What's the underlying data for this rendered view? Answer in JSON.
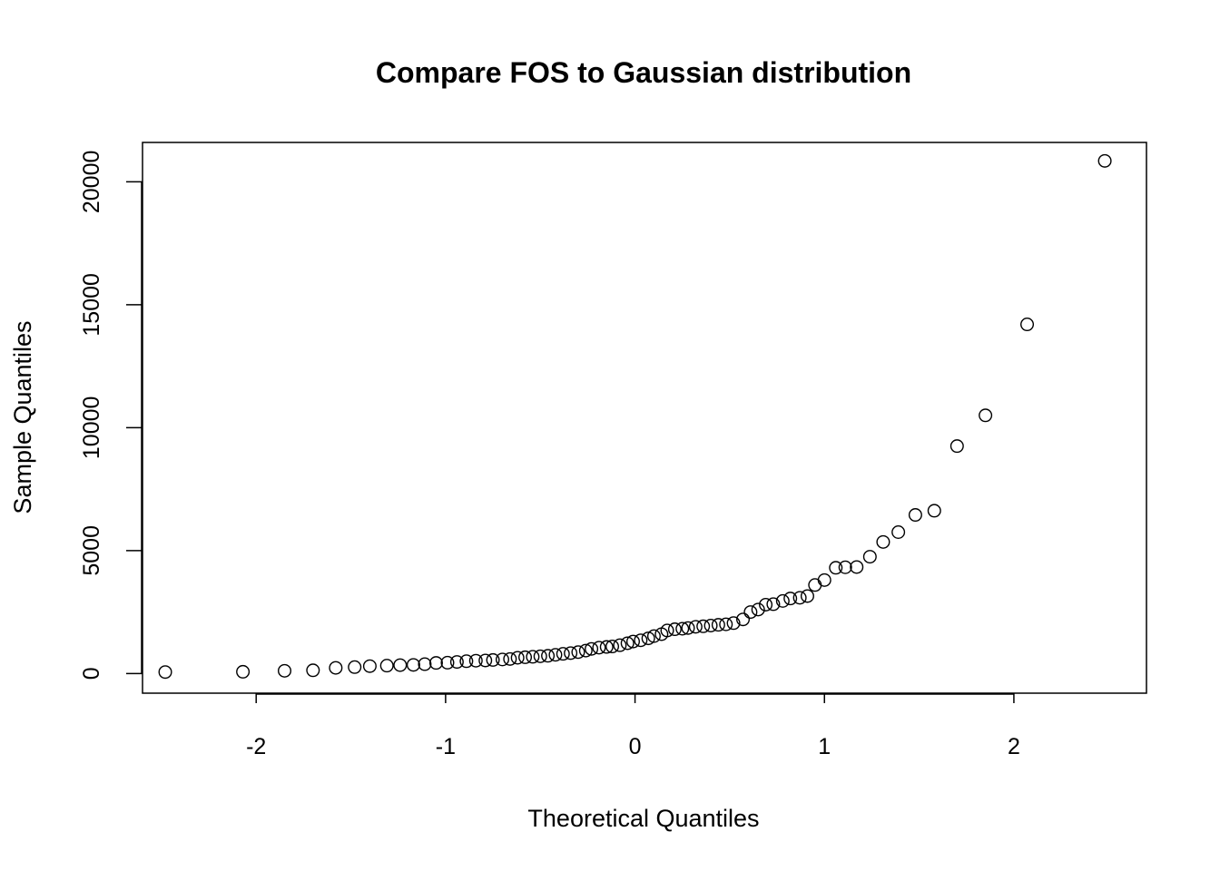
{
  "chart_data": {
    "type": "scatter",
    "title": "Compare FOS to Gaussian distribution",
    "xlabel": "Theoretical Quantiles",
    "ylabel": "Sample Quantiles",
    "xlim": [
      -2.6,
      2.7
    ],
    "ylim": [
      -800,
      21600
    ],
    "x_ticks": [
      -2,
      -1,
      0,
      1,
      2
    ],
    "x_tick_labels": [
      "-2",
      "-1",
      "0",
      "1",
      "2"
    ],
    "y_ticks": [
      0,
      5000,
      10000,
      15000,
      20000
    ],
    "y_tick_labels": [
      "0",
      "5000",
      "10000",
      "15000",
      "20000"
    ],
    "grid": false,
    "legend": false,
    "points": [
      {
        "x": -2.48,
        "y": 60
      },
      {
        "x": -2.07,
        "y": 70
      },
      {
        "x": -1.85,
        "y": 110
      },
      {
        "x": -1.7,
        "y": 130
      },
      {
        "x": -1.58,
        "y": 230
      },
      {
        "x": -1.48,
        "y": 260
      },
      {
        "x": -1.4,
        "y": 300
      },
      {
        "x": -1.31,
        "y": 320
      },
      {
        "x": -1.24,
        "y": 340
      },
      {
        "x": -1.17,
        "y": 350
      },
      {
        "x": -1.11,
        "y": 380
      },
      {
        "x": -1.05,
        "y": 430
      },
      {
        "x": -0.99,
        "y": 440
      },
      {
        "x": -0.94,
        "y": 470
      },
      {
        "x": -0.89,
        "y": 500
      },
      {
        "x": -0.84,
        "y": 520
      },
      {
        "x": -0.79,
        "y": 530
      },
      {
        "x": -0.75,
        "y": 550
      },
      {
        "x": -0.7,
        "y": 570
      },
      {
        "x": -0.66,
        "y": 590
      },
      {
        "x": -0.62,
        "y": 640
      },
      {
        "x": -0.58,
        "y": 660
      },
      {
        "x": -0.54,
        "y": 680
      },
      {
        "x": -0.5,
        "y": 700
      },
      {
        "x": -0.46,
        "y": 720
      },
      {
        "x": -0.42,
        "y": 760
      },
      {
        "x": -0.38,
        "y": 800
      },
      {
        "x": -0.34,
        "y": 830
      },
      {
        "x": -0.3,
        "y": 870
      },
      {
        "x": -0.26,
        "y": 930
      },
      {
        "x": -0.23,
        "y": 1000
      },
      {
        "x": -0.19,
        "y": 1050
      },
      {
        "x": -0.15,
        "y": 1080
      },
      {
        "x": -0.12,
        "y": 1100
      },
      {
        "x": -0.08,
        "y": 1150
      },
      {
        "x": -0.04,
        "y": 1230
      },
      {
        "x": -0.01,
        "y": 1300
      },
      {
        "x": 0.03,
        "y": 1350
      },
      {
        "x": 0.07,
        "y": 1430
      },
      {
        "x": 0.1,
        "y": 1520
      },
      {
        "x": 0.14,
        "y": 1600
      },
      {
        "x": 0.17,
        "y": 1750
      },
      {
        "x": 0.21,
        "y": 1800
      },
      {
        "x": 0.25,
        "y": 1820
      },
      {
        "x": 0.28,
        "y": 1850
      },
      {
        "x": 0.32,
        "y": 1900
      },
      {
        "x": 0.36,
        "y": 1920
      },
      {
        "x": 0.4,
        "y": 1950
      },
      {
        "x": 0.44,
        "y": 1980
      },
      {
        "x": 0.48,
        "y": 2000
      },
      {
        "x": 0.52,
        "y": 2050
      },
      {
        "x": 0.57,
        "y": 2200
      },
      {
        "x": 0.61,
        "y": 2500
      },
      {
        "x": 0.65,
        "y": 2600
      },
      {
        "x": 0.69,
        "y": 2800
      },
      {
        "x": 0.73,
        "y": 2820
      },
      {
        "x": 0.78,
        "y": 2950
      },
      {
        "x": 0.82,
        "y": 3050
      },
      {
        "x": 0.87,
        "y": 3080
      },
      {
        "x": 0.91,
        "y": 3150
      },
      {
        "x": 0.95,
        "y": 3600
      },
      {
        "x": 1.0,
        "y": 3800
      },
      {
        "x": 1.06,
        "y": 4300
      },
      {
        "x": 1.11,
        "y": 4320
      },
      {
        "x": 1.17,
        "y": 4330
      },
      {
        "x": 1.24,
        "y": 4750
      },
      {
        "x": 1.31,
        "y": 5350
      },
      {
        "x": 1.39,
        "y": 5750
      },
      {
        "x": 1.48,
        "y": 6450
      },
      {
        "x": 1.58,
        "y": 6620
      },
      {
        "x": 1.7,
        "y": 9250
      },
      {
        "x": 1.85,
        "y": 10500
      },
      {
        "x": 2.07,
        "y": 14200
      },
      {
        "x": 2.48,
        "y": 20850
      }
    ]
  }
}
